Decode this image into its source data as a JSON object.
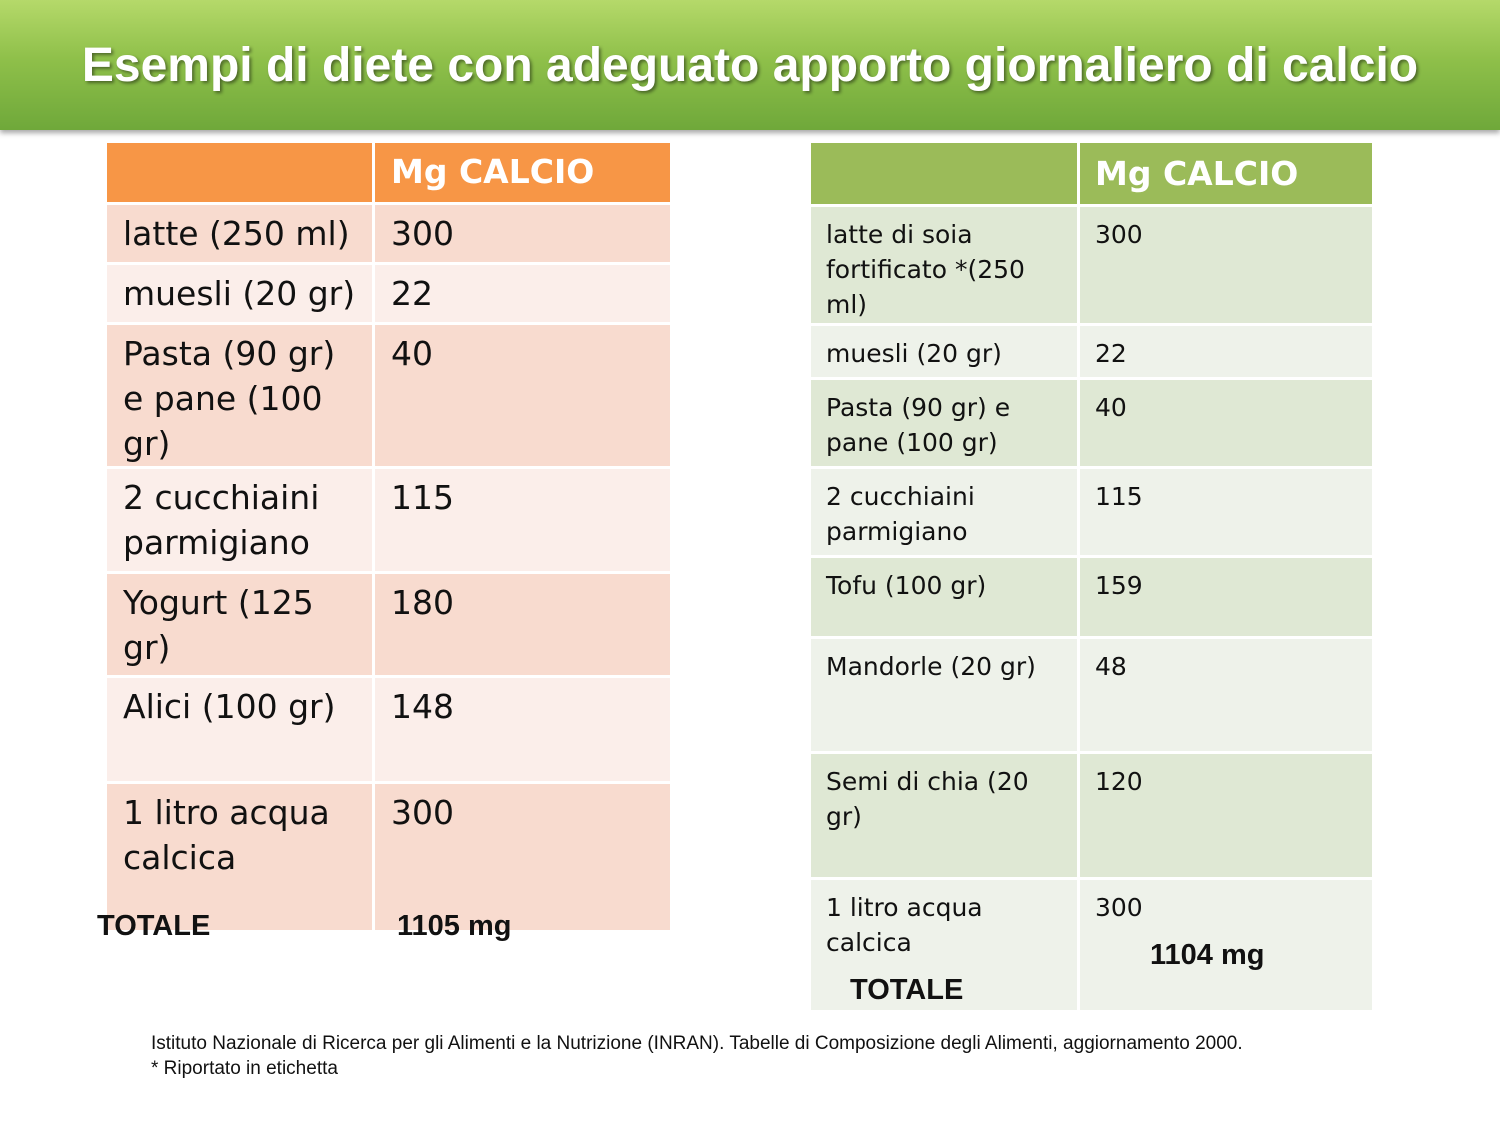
{
  "title": "Esempi di diete con adeguato apporto giornaliero di calcio",
  "left_table": {
    "header": [
      "",
      "Mg CALCIO"
    ],
    "rows": [
      {
        "food": "latte (250 ml)",
        "mg": "300"
      },
      {
        "food": "muesli (20 gr)",
        "mg": "22"
      },
      {
        "food": "Pasta (90 gr) e pane (100 gr)",
        "mg": "40"
      },
      {
        "food": "2 cucchiaini parmigiano",
        "mg": "115"
      },
      {
        "food": "Yogurt (125 gr)",
        "mg": "180"
      },
      {
        "food": "Alici (100 gr)",
        "mg": "148"
      },
      {
        "food": "1 litro acqua calcica",
        "mg": "300"
      }
    ],
    "total_label": "TOTALE",
    "total_value": "1105 mg",
    "colors": {
      "header": "#f79646",
      "row_dark": "#f8dbcf",
      "row_light": "#fbeeea"
    }
  },
  "right_table": {
    "header": [
      "",
      "Mg CALCIO"
    ],
    "rows": [
      {
        "food": "latte di soia fortificato  *(250 ml)",
        "mg": "300"
      },
      {
        "food": "muesli (20 gr)",
        "mg": "22"
      },
      {
        "food": "Pasta (90 gr) e pane (100 gr)",
        "mg": "40"
      },
      {
        "food": "2 cucchiaini parmigiano",
        "mg": "115"
      },
      {
        "food": "Tofu  (100 gr)",
        "mg": "159"
      },
      {
        "food": "Mandorle (20 gr)",
        "mg": "48"
      },
      {
        "food": "Semi di chia (20 gr)",
        "mg": "120"
      },
      {
        "food": "1 litro acqua calcica",
        "mg": "300"
      }
    ],
    "total_label": "TOTALE",
    "total_value": "1104 mg",
    "colors": {
      "header": "#9bbb59",
      "row_dark": "#dfe8d4",
      "row_light": "#eef2ea"
    }
  },
  "footnote": {
    "line1": "Istituto Nazionale di Ricerca per gli Alimenti e la Nutrizione (INRAN). Tabelle di Composizione degli Alimenti, aggiornamento 2000.",
    "line2": "* Riportato in etichetta"
  },
  "banner_color": "#8fc04a"
}
